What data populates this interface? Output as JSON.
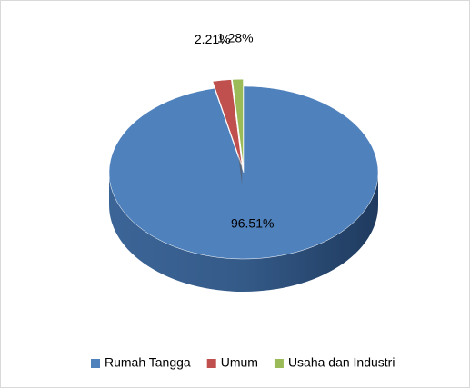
{
  "chart_data": {
    "type": "pie",
    "categories": [
      "Rumah Tangga",
      "Umum",
      "Usaha dan Industri"
    ],
    "values": [
      96.51,
      2.21,
      1.28
    ],
    "value_labels": [
      "96.51%",
      "2.21%",
      "1.28%"
    ],
    "colors": [
      "#4f81bd",
      "#c0504d",
      "#9bbb59"
    ],
    "legend": "bottom"
  }
}
